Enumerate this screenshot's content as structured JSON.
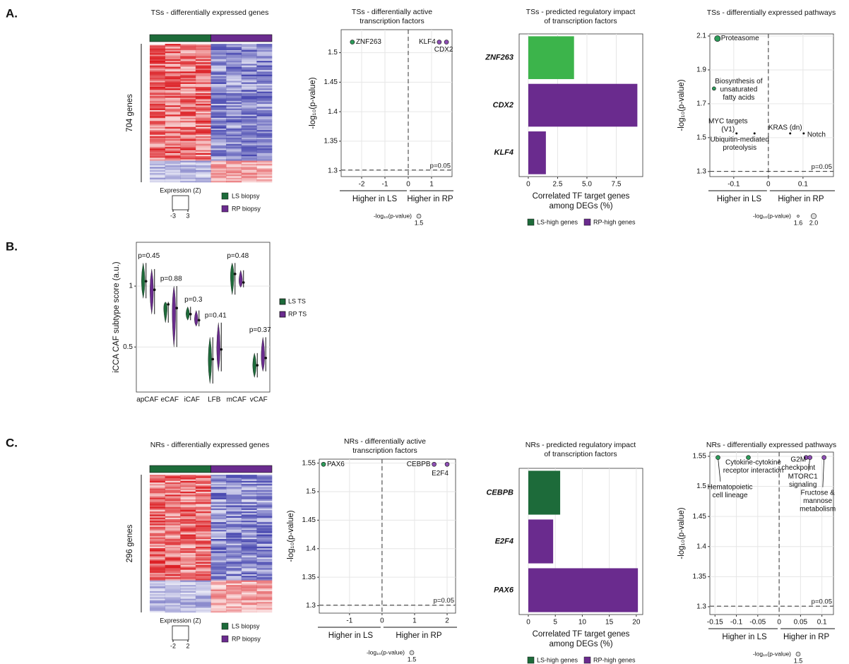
{
  "panel_labels": [
    "A.",
    "B.",
    "C."
  ],
  "chart_data": [
    {
      "type": "heatmap",
      "title": "TSs - differentially expressed genes",
      "ylabel": "704 genes",
      "colorbar_title": "Expression (Z)",
      "colorbar_ticks": [
        -3,
        3
      ],
      "groups": [
        {
          "name": "LS biopsy",
          "color": "#1d6b3a"
        },
        {
          "name": "RP biopsy",
          "color": "#6a2b8e"
        }
      ]
    },
    {
      "type": "scatter",
      "title": [
        "TSs - differentially active",
        "transcription factors"
      ],
      "ylabel": "-log₁₀(p-value)",
      "xlim": [
        -2.88,
        1.88
      ],
      "ylim": [
        1.29,
        1.539
      ],
      "xticks": [
        -2,
        -1,
        0,
        1
      ],
      "yticks": [
        1.3,
        1.35,
        1.4,
        1.45,
        1.5
      ],
      "grid": true,
      "threshold": 1.301,
      "threshold_label": "p=0.05",
      "vline": 0,
      "x_groups": [
        "Higher in LS",
        "Higher in RP"
      ],
      "size_title": "-log₁₀(p-value)",
      "size_ticks": [
        1.5
      ],
      "points": [
        {
          "label": [
            "ZNF263"
          ],
          "x": -2.4,
          "y": 1.518,
          "color": "#2e9d5b"
        },
        {
          "label": [
            "KLF4"
          ],
          "x": 1.33,
          "y": 1.518,
          "color": "#8e4fb5"
        },
        {
          "label": [
            "CDX2"
          ],
          "x": 1.64,
          "y": 1.518,
          "color": "#8e4fb5"
        }
      ]
    },
    {
      "type": "bar",
      "orientation": "horizontal",
      "title": [
        "TSs - predicted regulatory impact",
        "of transcription factors"
      ],
      "categories": [
        "ZNF263",
        "CDX2",
        "KLF4"
      ],
      "values": [
        3.9,
        9.3,
        1.5
      ],
      "colors": [
        "#3cb44b",
        "#6a2b8e",
        "#6a2b8e"
      ],
      "xlim": [
        -0.78,
        9.76
      ],
      "xticks": [
        0,
        2.5,
        {
          "value": 5,
          "label": "5.0"
        },
        7.5
      ],
      "grid": true,
      "xlabel": [
        "Correlated TF target genes",
        "among DEGs (%)"
      ],
      "legend": [
        {
          "name": "LS-high genes",
          "color": "#1d6b3a"
        },
        {
          "name": "RP-high genes",
          "color": "#6a2b8e"
        }
      ]
    },
    {
      "type": "scatter",
      "title": "TSs - differentially expressed pathways",
      "ylabel": "-log₁₀(p-value)",
      "xlim": [
        -0.169,
        0.188
      ],
      "ylim": [
        1.27,
        2.1125
      ],
      "xticks": [
        -0.1,
        0,
        0.1
      ],
      "yticks": [
        1.3,
        1.5,
        1.7,
        1.9,
        2.1
      ],
      "grid": true,
      "threshold": 1.301,
      "threshold_label": "p=0.05",
      "vline": 0,
      "x_groups": [
        "Higher in LS",
        "Higher in RP"
      ],
      "size_title": "-log₁₀(p-value)",
      "size_ticks": [
        1.6,
        {
          "value": 2,
          "label": "2.0"
        }
      ],
      "points": [
        {
          "label": [
            "Proteasome"
          ],
          "x": -0.147,
          "y": 2.085,
          "color": "#2e9d5b"
        },
        {
          "label": [
            "Biosynthesis of",
            "unsaturated",
            "fatty acids"
          ],
          "x": -0.157,
          "y": 1.79,
          "color": "#2e9d5b"
        },
        {
          "label": [
            "MYC targets",
            "(V1)"
          ],
          "x": -0.092,
          "y": 1.525,
          "color": "#000000"
        },
        {
          "label": [
            "Ubiquitin-mediated",
            "proteolysis"
          ],
          "x": -0.04,
          "y": 1.525,
          "color": "#000000"
        },
        {
          "label": [
            "KRAS (dn)"
          ],
          "x": 0.063,
          "y": 1.525,
          "color": "#000000"
        },
        {
          "label": [
            "Notch"
          ],
          "x": 0.102,
          "y": 1.525,
          "color": "#000000"
        }
      ]
    },
    {
      "type": "violin",
      "ylabel": "iCCA CAF subtype score (a.u.)",
      "categories": [
        "apCAF",
        "eCAF",
        "iCAF",
        "LFB",
        "mCAF",
        "vCAF"
      ],
      "p_labels": [
        "p=0.45",
        "p=0.88",
        "p=0.3",
        "p=0.41",
        "p=0.48",
        "p=0.37"
      ],
      "ylim": [
        0.13,
        1.36
      ],
      "yticks": [
        0.5,
        1
      ],
      "grid": true,
      "series": [
        {
          "name": "LS TS",
          "color": "#1d6b3a",
          "low": [
            0.9,
            0.7,
            0.72,
            0.2,
            0.93,
            0.25
          ],
          "high": [
            1.19,
            0.87,
            0.83,
            0.58,
            1.19,
            0.45
          ],
          "mean": [
            1.04,
            0.85,
            0.77,
            0.4,
            1.1,
            0.35
          ]
        },
        {
          "name": "RP TS",
          "color": "#6a2b8e",
          "low": [
            0.77,
            0.5,
            0.67,
            0.3,
            0.99,
            0.3
          ],
          "high": [
            1.14,
            1.0,
            0.8,
            0.7,
            1.13,
            0.58
          ],
          "mean": [
            0.97,
            0.82,
            0.72,
            0.48,
            1.03,
            0.41
          ]
        }
      ]
    },
    {
      "type": "heatmap",
      "title": "NRs - differentially expressed genes",
      "ylabel": "296 genes",
      "colorbar_title": "Expression (Z)",
      "colorbar_ticks": [
        -2,
        2
      ],
      "groups": [
        {
          "name": "LS biopsy",
          "color": "#1d6b3a"
        },
        {
          "name": "RP biopsy",
          "color": "#6a2b8e"
        }
      ]
    },
    {
      "type": "scatter",
      "title": [
        "NRs - differentially active",
        "transcription factors"
      ],
      "ylabel": "-log₁₀(p-value)",
      "xlim": [
        -1.93,
        2.26
      ],
      "ylim": [
        1.287,
        1.557
      ],
      "xticks": [
        -1,
        0,
        1,
        2
      ],
      "yticks": [
        1.3,
        1.35,
        1.4,
        1.45,
        1.5,
        1.55
      ],
      "grid": true,
      "threshold": 1.301,
      "threshold_label": "p=0.05",
      "vline": 0,
      "x_groups": [
        "Higher in LS",
        "Higher in RP"
      ],
      "size_title": "-log₁₀(p-value)",
      "size_ticks": [
        1.5
      ],
      "points": [
        {
          "label": [
            "PAX6"
          ],
          "x": -1.8,
          "y": 1.548,
          "color": "#2e9d5b"
        },
        {
          "label": [
            "CEBPB"
          ],
          "x": 1.6,
          "y": 1.548,
          "color": "#8e4fb5"
        },
        {
          "label": [
            "E2F4"
          ],
          "x": 2.0,
          "y": 1.548,
          "color": "#8e4fb5"
        }
      ]
    },
    {
      "type": "bar",
      "orientation": "horizontal",
      "title": [
        "NRs - predicted regulatory impact",
        "of transcription factors"
      ],
      "categories": [
        "CEBPB",
        "E2F4",
        "PAX6"
      ],
      "values": [
        5.9,
        4.6,
        20.3
      ],
      "colors": [
        "#1d6b3a",
        "#6a2b8e",
        "#6a2b8e"
      ],
      "xlim": [
        -1.7,
        21.2
      ],
      "xticks": [
        0,
        5,
        10,
        15,
        20
      ],
      "grid": true,
      "xlabel": [
        "Correlated TF target genes",
        "among DEGs (%)"
      ],
      "legend": [
        {
          "name": "LS-high genes",
          "color": "#1d6b3a"
        },
        {
          "name": "RP-high genes",
          "color": "#6a2b8e"
        }
      ]
    },
    {
      "type": "scatter",
      "title": "NRs - differentially expressed pathways",
      "ylabel": "-log₁₀(p-value)",
      "xlim": [
        -0.162,
        0.127
      ],
      "ylim": [
        1.287,
        1.557
      ],
      "xticks": [
        -0.15,
        -0.1,
        -0.05,
        0,
        0.05,
        0.1
      ],
      "yticks": [
        1.3,
        1.35,
        1.4,
        1.45,
        1.5,
        1.55
      ],
      "grid": true,
      "threshold": 1.301,
      "threshold_label": "p=0.05",
      "vline": 0,
      "x_groups": [
        "Higher in LS",
        "Higher in RP"
      ],
      "size_title": "-log₁₀(p-value)",
      "size_ticks": [
        1.5
      ],
      "points": [
        {
          "label": [
            "Hematopoietic",
            "cell lineage"
          ],
          "x": -0.143,
          "y": 1.548,
          "color": "#2e9d5b"
        },
        {
          "label": [
            "Cytokine-cytokine",
            "receptor interaction"
          ],
          "x": -0.072,
          "y": 1.548,
          "color": "#2e9d5b"
        },
        {
          "label": [
            "G2M",
            "checkpoint"
          ],
          "x": 0.063,
          "y": 1.548,
          "color": "#8e4fb5"
        },
        {
          "label": [
            "MTORC1",
            "signaling"
          ],
          "x": 0.072,
          "y": 1.548,
          "color": "#8e4fb5"
        },
        {
          "label": [
            "Fructose &",
            "mannose",
            "metabolism"
          ],
          "x": 0.105,
          "y": 1.548,
          "color": "#8e4fb5"
        }
      ]
    }
  ]
}
